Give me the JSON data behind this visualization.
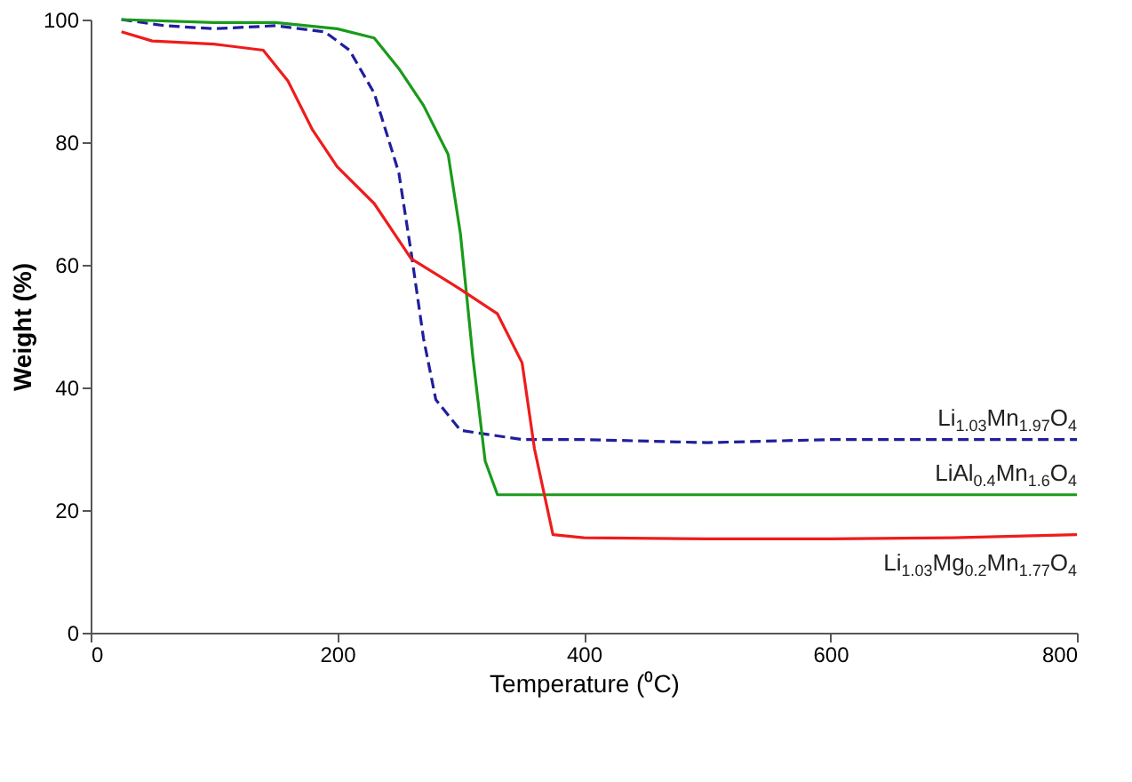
{
  "chart_data": {
    "type": "line",
    "xlabel": "Temperature (⁰C)",
    "ylabel": "Weight (%)",
    "xlim": [
      0,
      800
    ],
    "ylim": [
      0,
      100
    ],
    "xticks": [
      0,
      200,
      400,
      600,
      800
    ],
    "yticks": [
      0,
      20,
      40,
      60,
      80,
      100
    ],
    "grid": false,
    "legend": false,
    "marker": "none",
    "series": [
      {
        "name": "Li$_{1.03}$Mn$_{1.97}$O$_{4}$",
        "color": "#1f1f9e",
        "line_style": "dashed",
        "x": [
          25,
          60,
          100,
          150,
          190,
          210,
          230,
          250,
          260,
          270,
          280,
          300,
          350,
          400,
          500,
          600,
          700,
          800
        ],
        "values": [
          100,
          99,
          98.5,
          99,
          98,
          95,
          88,
          75,
          62,
          48,
          38,
          33,
          31.5,
          31.5,
          31,
          31.5,
          31.5,
          31.5
        ]
      },
      {
        "name": "LiAl$_{0.4}$Mn$_{1.6}$O$_{4}$",
        "color": "#1a9a1a",
        "line_style": "solid",
        "x": [
          25,
          100,
          150,
          200,
          230,
          250,
          270,
          290,
          300,
          310,
          320,
          330,
          400,
          600,
          800
        ],
        "values": [
          100,
          99.5,
          99.5,
          98.5,
          97,
          92,
          86,
          78,
          65,
          45,
          28,
          22.5,
          22.5,
          22.5,
          22.5
        ]
      },
      {
        "name": "Li$_{1.03}$Mg$_{0.2}$Mn$_{1.77}$O$_{4}$",
        "color": "#ee1c1c",
        "line_style": "solid",
        "x": [
          25,
          50,
          100,
          140,
          160,
          180,
          200,
          230,
          260,
          300,
          330,
          350,
          360,
          375,
          400,
          500,
          600,
          700,
          800
        ],
        "values": [
          98,
          96.5,
          96,
          95,
          90,
          82,
          76,
          70,
          61,
          56,
          52,
          44,
          30,
          16,
          15.5,
          15.3,
          15.3,
          15.5,
          16
        ]
      }
    ]
  }
}
